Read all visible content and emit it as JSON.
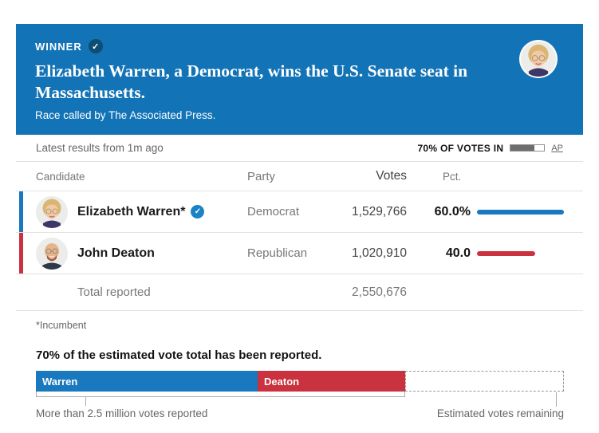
{
  "banner": {
    "winner_label": "WINNER",
    "check_glyph": "✓",
    "headline": "Elizabeth Warren, a Democrat, wins the U.S. Senate seat in Massachusetts.",
    "subhead": "Race called by The Associated Press.",
    "bg_color": "#1273b6",
    "badge_color": "#0e4d74"
  },
  "status_bar": {
    "latest": "Latest results from 1m ago",
    "votes_in_label": "70% OF VOTES IN",
    "votes_in_pct": 70,
    "source": "AP"
  },
  "results_table": {
    "columns": {
      "candidate": "Candidate",
      "party": "Party",
      "votes": "Votes",
      "pct": "Pct."
    },
    "check_color": "#1c82c6",
    "check_glyph": "✓",
    "rows": [
      {
        "name": "Elizabeth Warren*",
        "winner": true,
        "party": "Democrat",
        "votes": "1,529,766",
        "pct": "60.0%",
        "pct_value": 60,
        "bar_length_pct": 100,
        "color": "#1978be"
      },
      {
        "name": "John Deaton",
        "winner": false,
        "party": "Republican",
        "votes": "1,020,910",
        "pct": "40.0",
        "pct_value": 40,
        "bar_length_pct": 67,
        "color": "#c9323e"
      }
    ],
    "total_label": "Total reported",
    "total_votes": "2,550,676",
    "footnote": "*Incumbent"
  },
  "reporting_chart": {
    "title": "70% of the estimated vote total has been reported.",
    "reported_pct": 70,
    "segments": [
      {
        "label": "Warren",
        "width_pct": 42,
        "color": "#1978be"
      },
      {
        "label": "Deaton",
        "width_pct": 28,
        "color": "#c9323e"
      }
    ],
    "remaining_pct": 30,
    "reported_label": "More than 2.5 million votes reported",
    "remaining_label": "Estimated votes remaining"
  },
  "chart_data": {
    "type": "bar",
    "title": "Massachusetts U.S. Senate results",
    "categories": [
      "Elizabeth Warren* (Democrat)",
      "John Deaton (Republican)"
    ],
    "series": [
      {
        "name": "Votes",
        "values": [
          1529766,
          1020910
        ]
      },
      {
        "name": "Pct",
        "values": [
          60.0,
          40.0
        ]
      }
    ],
    "total_reported": 2550676,
    "pct_votes_in": 70,
    "annotations": [
      "WINNER: Elizabeth Warren",
      "Race called by The Associated Press",
      "*Incumbent",
      "70% of the estimated vote total has been reported.",
      "More than 2.5 million votes reported",
      "Estimated votes remaining"
    ]
  }
}
